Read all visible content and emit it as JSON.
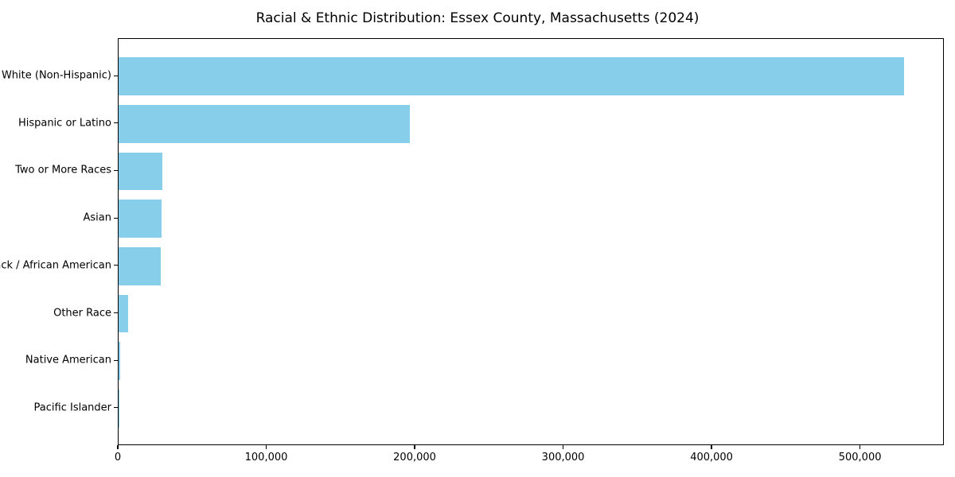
{
  "chart_data": {
    "type": "bar",
    "orientation": "horizontal",
    "title": "Racial & Ethnic Distribution: Essex County, Massachusetts (2024)",
    "categories": [
      "White (Non-Hispanic)",
      "Hispanic or Latino",
      "Two or More Races",
      "Asian",
      "Black / African American",
      "Other Race",
      "Native American",
      "Pacific Islander"
    ],
    "values": [
      530000,
      196500,
      29500,
      29200,
      28400,
      6400,
      1000,
      300
    ],
    "bar_color": "#87CEEB",
    "xlabel": "",
    "ylabel": "",
    "xlim": [
      0,
      556500
    ],
    "x_ticks": [
      0,
      100000,
      200000,
      300000,
      400000,
      500000
    ],
    "x_tick_labels": [
      "0",
      "100,000",
      "200,000",
      "300,000",
      "400,000",
      "500,000"
    ],
    "grid": false,
    "legend": null,
    "frame": "full-box",
    "text_color": "#000000"
  }
}
